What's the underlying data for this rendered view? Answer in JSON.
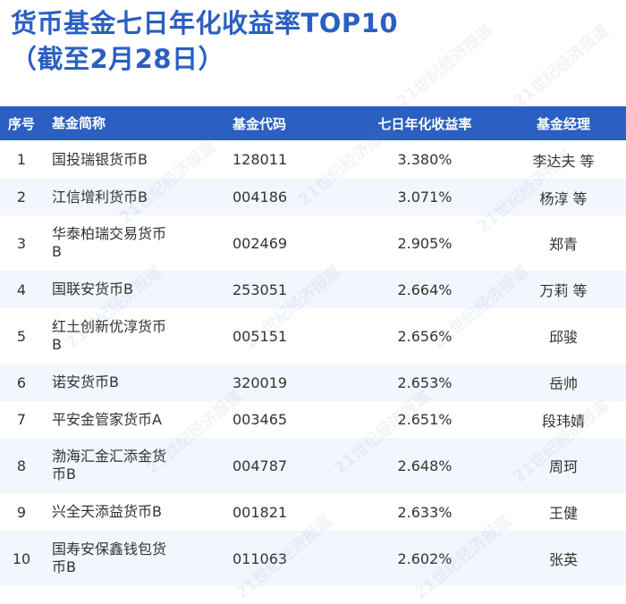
{
  "title": {
    "line1": "货币基金七日年化收益率TOP10",
    "line2": "（截至2月28日）"
  },
  "watermark_text": "21世纪经济报道",
  "table": {
    "headers": [
      "序号",
      "基金简称",
      "基金代码",
      "七日年化收益率",
      "基金经理"
    ],
    "rows": [
      {
        "idx": "1",
        "name": "国投瑞银货币B",
        "code": "128011",
        "yield": "3.380%",
        "manager": "李达夫 等"
      },
      {
        "idx": "2",
        "name": "江信增利货币B",
        "code": "004186",
        "yield": "3.071%",
        "manager": "杨淳 等"
      },
      {
        "idx": "3",
        "name": "华泰柏瑞交易货币B",
        "code": "002469",
        "yield": "2.905%",
        "manager": "郑青"
      },
      {
        "idx": "4",
        "name": "国联安货币B",
        "code": "253051",
        "yield": "2.664%",
        "manager": "万莉 等"
      },
      {
        "idx": "5",
        "name": "红土创新优淳货币B",
        "code": "005151",
        "yield": "2.656%",
        "manager": "邱骏"
      },
      {
        "idx": "6",
        "name": "诺安货币B",
        "code": "320019",
        "yield": "2.653%",
        "manager": "岳帅"
      },
      {
        "idx": "7",
        "name": "平安金管家货币A",
        "code": "003465",
        "yield": "2.651%",
        "manager": "段玮婧"
      },
      {
        "idx": "8",
        "name": "渤海汇金汇添金货币B",
        "code": "004787",
        "yield": "2.648%",
        "manager": "周珂"
      },
      {
        "idx": "9",
        "name": "兴全天添益货币B",
        "code": "001821",
        "yield": "2.633%",
        "manager": "王健"
      },
      {
        "idx": "10",
        "name": "国寿安保鑫钱包货币B",
        "code": "011063",
        "yield": "2.602%",
        "manager": "张英"
      }
    ]
  },
  "colors": {
    "brand_blue": "#2b5fc1",
    "stripe": "#f2f6fd"
  }
}
